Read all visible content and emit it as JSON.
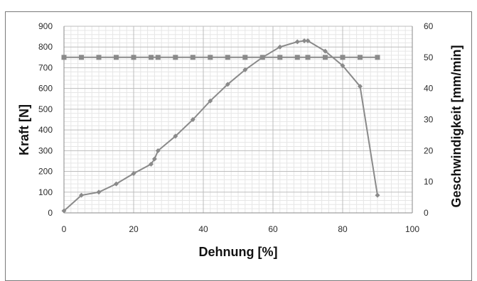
{
  "chart_data": {
    "type": "line",
    "title": "",
    "xlabel": "Dehnung [%]",
    "ylabel": "Kraft [N]",
    "y2label": "Geschwindigkeit [mm/min]",
    "xlim": [
      0,
      100
    ],
    "ylim": [
      0,
      900
    ],
    "y2lim": [
      0,
      60
    ],
    "xticks": [
      0,
      20,
      40,
      60,
      80,
      100
    ],
    "yticks": [
      0,
      100,
      200,
      300,
      400,
      500,
      600,
      700,
      800,
      900
    ],
    "y2ticks": [
      0,
      10,
      20,
      30,
      40,
      50,
      60
    ],
    "grid": true,
    "legend": "none",
    "series": [
      {
        "axis": "left",
        "marker": "diamond",
        "color": "#8a8a8a",
        "x": [
          0,
          5,
          10,
          15,
          20,
          25,
          26,
          27,
          32,
          37,
          42,
          47,
          52,
          57,
          62,
          67,
          69,
          70,
          75,
          80,
          85,
          90
        ],
        "y": [
          10,
          85,
          100,
          140,
          190,
          235,
          260,
          300,
          370,
          450,
          540,
          620,
          690,
          750,
          800,
          825,
          830,
          830,
          780,
          710,
          610,
          85
        ]
      },
      {
        "axis": "right",
        "marker": "square",
        "color": "#8a8a8a",
        "x": [
          0,
          5,
          10,
          15,
          20,
          25,
          27,
          32,
          37,
          42,
          47,
          52,
          57,
          62,
          67,
          70,
          75,
          80,
          85,
          90
        ],
        "y": [
          50,
          50,
          50,
          50,
          50,
          50,
          50,
          50,
          50,
          50,
          50,
          50,
          50,
          50,
          50,
          50,
          50,
          50,
          50,
          50
        ]
      }
    ]
  }
}
